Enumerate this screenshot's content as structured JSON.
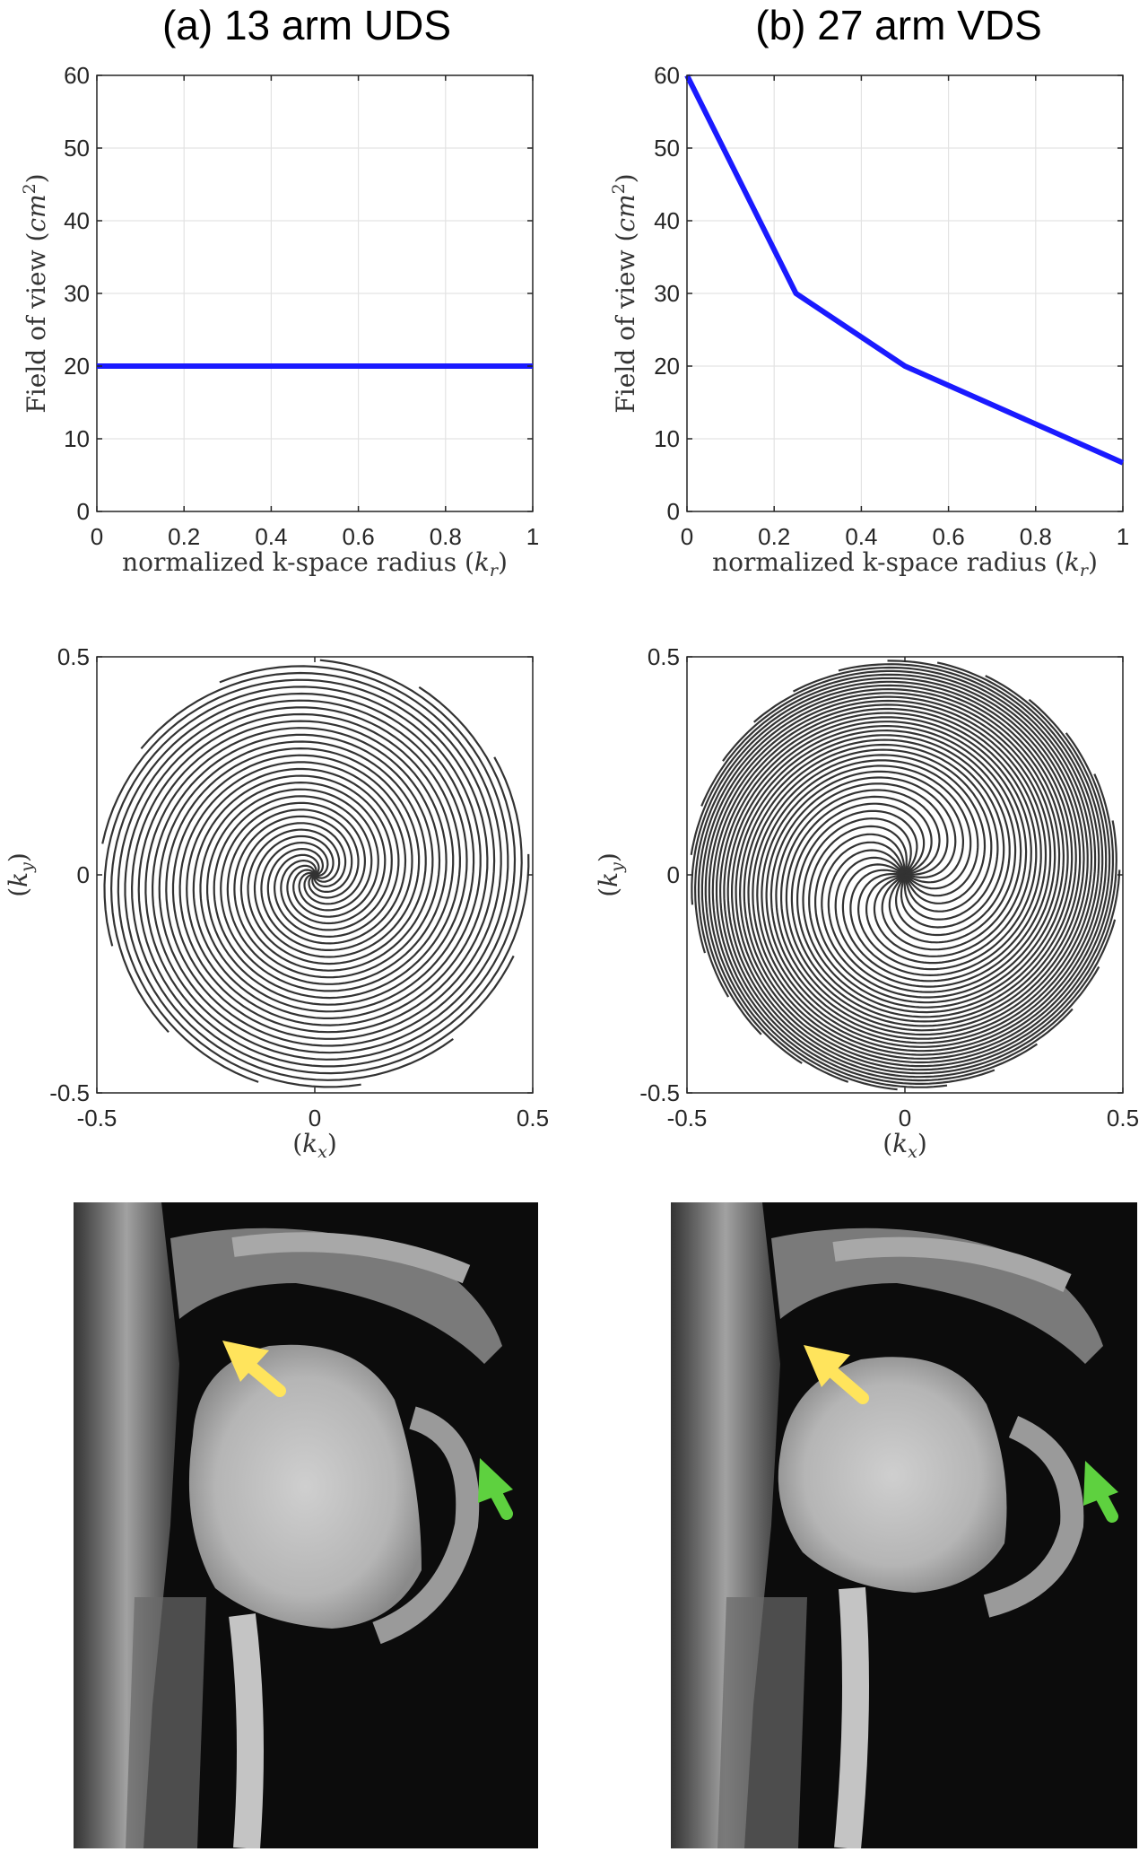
{
  "panels": {
    "a": {
      "title": "(a) 13 arm UDS"
    },
    "b": {
      "title": "(b) 27 arm VDS"
    }
  },
  "chart_data": [
    {
      "id": "fov-a",
      "type": "line",
      "panel": "a",
      "xlabel": "normalized k-space radius (k_r)",
      "ylabel": "Field of view (cm^2)",
      "xlim": [
        0,
        1
      ],
      "ylim": [
        0,
        60
      ],
      "xticks": [
        0,
        0.2,
        0.4,
        0.6,
        0.8,
        1
      ],
      "xtick_labels": [
        "0",
        "0.2",
        "0.4",
        "0.6",
        "0.8",
        "1"
      ],
      "yticks": [
        0,
        10,
        20,
        30,
        40,
        50,
        60
      ],
      "ytick_labels": [
        "0",
        "10",
        "20",
        "30",
        "40",
        "50",
        "60"
      ],
      "grid": true,
      "series": [
        {
          "color": "#1a1aff",
          "x": [
            0,
            1
          ],
          "y": [
            20,
            20
          ]
        }
      ]
    },
    {
      "id": "fov-b",
      "type": "line",
      "panel": "b",
      "xlabel": "normalized k-space radius (k_r)",
      "ylabel": "Field of view (cm^2)",
      "xlim": [
        0,
        1
      ],
      "ylim": [
        0,
        60
      ],
      "xticks": [
        0,
        0.2,
        0.4,
        0.6,
        0.8,
        1
      ],
      "xtick_labels": [
        "0",
        "0.2",
        "0.4",
        "0.6",
        "0.8",
        "1"
      ],
      "yticks": [
        0,
        10,
        20,
        30,
        40,
        50,
        60
      ],
      "ytick_labels": [
        "0",
        "10",
        "20",
        "30",
        "40",
        "50",
        "60"
      ],
      "grid": true,
      "series": [
        {
          "color": "#1a1aff",
          "x": [
            0,
            0.25,
            0.5,
            1
          ],
          "y": [
            60,
            30,
            20,
            6.7
          ]
        }
      ]
    },
    {
      "id": "traj-a",
      "type": "line",
      "panel": "a",
      "subtype": "spiral k-space trajectory",
      "arms": 13,
      "density": "uniform",
      "xlabel": "(k_x)",
      "ylabel": "(k_y)",
      "xlim": [
        -0.5,
        0.5
      ],
      "ylim": [
        -0.5,
        0.5
      ],
      "xticks": [
        -0.5,
        0,
        0.5
      ],
      "xtick_labels": [
        "-0.5",
        "0",
        "0.5"
      ],
      "yticks": [
        -0.5,
        0,
        0.5
      ],
      "ytick_labels": [
        "-0.5",
        "0",
        "0.5"
      ],
      "grid": false,
      "color": "#333333"
    },
    {
      "id": "traj-b",
      "type": "line",
      "panel": "b",
      "subtype": "spiral k-space trajectory",
      "arms": 27,
      "density": "variable",
      "xlabel": "(k_x)",
      "ylabel": "(k_y)",
      "xlim": [
        -0.5,
        0.5
      ],
      "ylim": [
        -0.5,
        0.5
      ],
      "xticks": [
        -0.5,
        0,
        0.5
      ],
      "xtick_labels": [
        "-0.5",
        "0",
        "0.5"
      ],
      "yticks": [
        -0.5,
        0,
        0.5
      ],
      "ytick_labels": [
        "-0.5",
        "0",
        "0.5"
      ],
      "grid": false,
      "color": "#333333"
    }
  ],
  "images": [
    {
      "panel": "a",
      "content": "mri-midsagittal-vocal-tract",
      "arrows": [
        {
          "color": "#ffe45c",
          "direction": "up-left"
        },
        {
          "color": "#5ed13f",
          "direction": "up-left"
        }
      ]
    },
    {
      "panel": "b",
      "content": "mri-midsagittal-vocal-tract",
      "arrows": [
        {
          "color": "#ffe45c",
          "direction": "up-left"
        },
        {
          "color": "#5ed13f",
          "direction": "up-left"
        }
      ]
    }
  ]
}
